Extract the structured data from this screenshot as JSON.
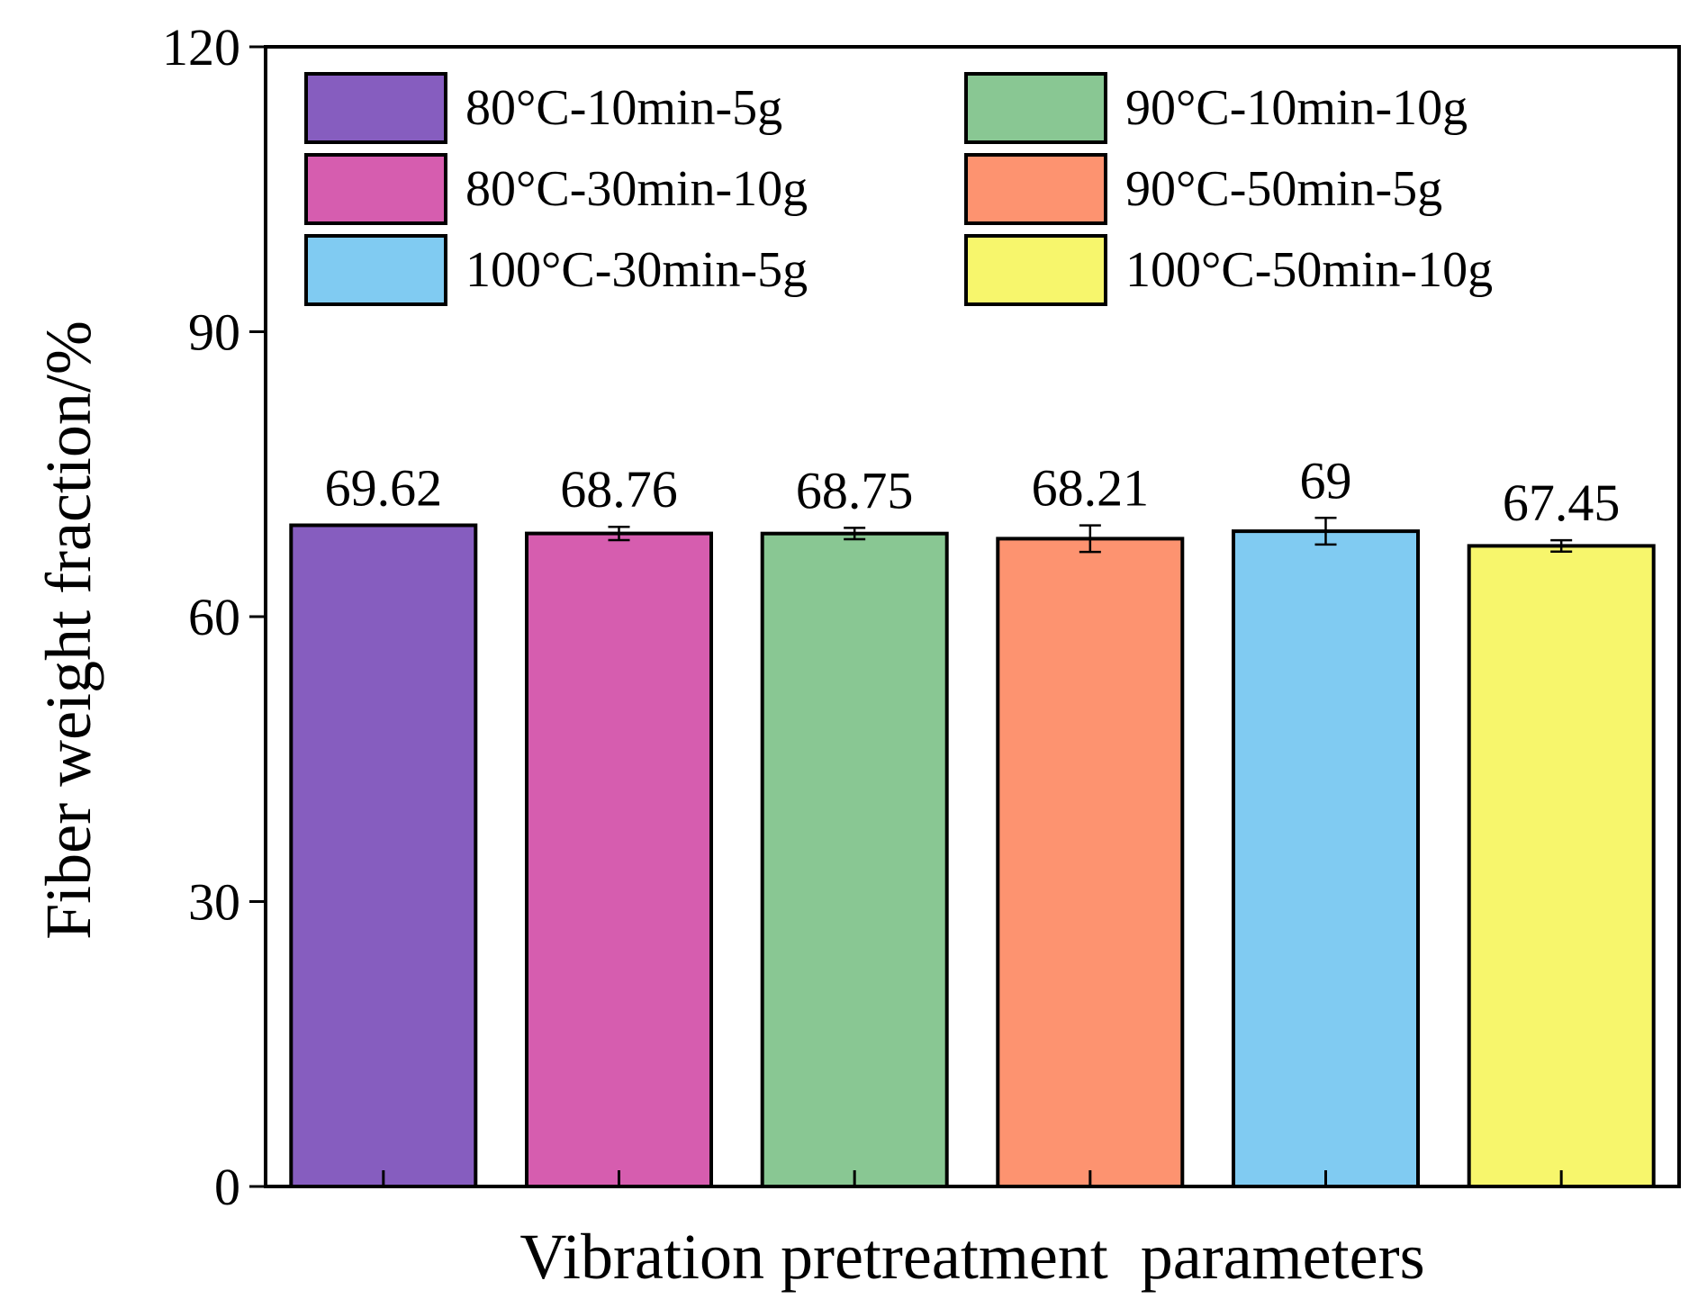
{
  "chart_data": {
    "type": "bar",
    "title": "",
    "xlabel": "Vibration pretreatment  parameters",
    "ylabel": "Fiber weight fraction/%",
    "ylim": [
      0,
      120
    ],
    "yticks": [
      "0",
      "30",
      "60",
      "90",
      "120"
    ],
    "grid": false,
    "legend_position": "top",
    "categories": [
      "80°C-10min-5g",
      "80°C-30min-10g",
      "90°C-10min-10g",
      "90°C-50min-5g",
      "100°C-30min-5g",
      "100°C-50min-10g"
    ],
    "values": [
      69.62,
      68.76,
      68.75,
      68.21,
      69,
      67.45
    ],
    "value_labels": [
      "69.62",
      "68.76",
      "68.75",
      "68.21",
      "69",
      "67.45"
    ],
    "errors": [
      0,
      0.7,
      0.6,
      1.4,
      1.4,
      0.6
    ],
    "colors": [
      "#865dbf",
      "#d65daf",
      "#89c793",
      "#fd9370",
      "#80cbf2",
      "#f7f66c"
    ],
    "legend_order": [
      0,
      2,
      1,
      3,
      4,
      5
    ]
  }
}
